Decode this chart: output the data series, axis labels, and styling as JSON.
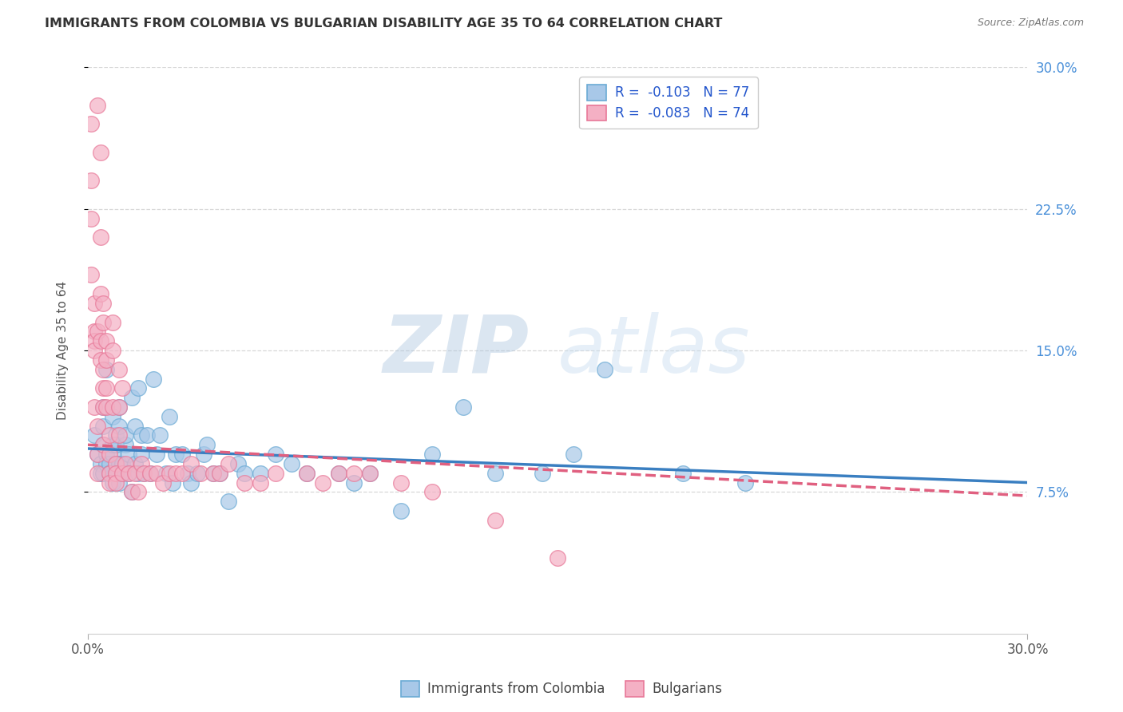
{
  "title": "IMMIGRANTS FROM COLOMBIA VS BULGARIAN DISABILITY AGE 35 TO 64 CORRELATION CHART",
  "source": "Source: ZipAtlas.com",
  "ylabel": "Disability Age 35 to 64",
  "xlim": [
    0.0,
    0.3
  ],
  "ylim": [
    0.0,
    0.3
  ],
  "ytick_labels": [
    "7.5%",
    "15.0%",
    "22.5%",
    "30.0%"
  ],
  "ytick_values": [
    0.075,
    0.15,
    0.225,
    0.3
  ],
  "colombia_color": "#a8c8e8",
  "bulgaria_color": "#f4b0c4",
  "colombia_edge": "#6aaad4",
  "bulgaria_edge": "#e87898",
  "trend_colombia_color": "#3a7fc1",
  "trend_bulgaria_color": "#e06080",
  "R_colombia": -0.103,
  "N_colombia": 77,
  "R_bulgaria": -0.083,
  "N_bulgaria": 74,
  "legend_label_colombia": "Immigrants from Colombia",
  "legend_label_bulgaria": "Bulgarians",
  "watermark_zip": "ZIP",
  "watermark_atlas": "atlas",
  "background_color": "#ffffff",
  "grid_color": "#d8d8d8",
  "colombia_scatter_x": [
    0.002,
    0.003,
    0.004,
    0.004,
    0.005,
    0.005,
    0.005,
    0.005,
    0.006,
    0.006,
    0.006,
    0.007,
    0.007,
    0.007,
    0.008,
    0.008,
    0.008,
    0.008,
    0.009,
    0.009,
    0.009,
    0.009,
    0.01,
    0.01,
    0.01,
    0.01,
    0.011,
    0.011,
    0.012,
    0.012,
    0.013,
    0.013,
    0.014,
    0.014,
    0.015,
    0.015,
    0.016,
    0.016,
    0.017,
    0.017,
    0.018,
    0.019,
    0.02,
    0.021,
    0.022,
    0.023,
    0.025,
    0.026,
    0.027,
    0.028,
    0.03,
    0.032,
    0.033,
    0.035,
    0.037,
    0.038,
    0.04,
    0.042,
    0.045,
    0.048,
    0.05,
    0.055,
    0.06,
    0.065,
    0.07,
    0.08,
    0.085,
    0.09,
    0.1,
    0.11,
    0.12,
    0.13,
    0.145,
    0.155,
    0.165,
    0.19,
    0.21
  ],
  "colombia_scatter_y": [
    0.105,
    0.095,
    0.09,
    0.085,
    0.085,
    0.1,
    0.11,
    0.12,
    0.14,
    0.095,
    0.09,
    0.09,
    0.085,
    0.085,
    0.08,
    0.095,
    0.1,
    0.115,
    0.105,
    0.1,
    0.09,
    0.085,
    0.08,
    0.09,
    0.12,
    0.11,
    0.09,
    0.085,
    0.1,
    0.105,
    0.095,
    0.085,
    0.075,
    0.125,
    0.11,
    0.09,
    0.085,
    0.13,
    0.105,
    0.095,
    0.085,
    0.105,
    0.085,
    0.135,
    0.095,
    0.105,
    0.085,
    0.115,
    0.08,
    0.095,
    0.095,
    0.085,
    0.08,
    0.085,
    0.095,
    0.1,
    0.085,
    0.085,
    0.07,
    0.09,
    0.085,
    0.085,
    0.095,
    0.09,
    0.085,
    0.085,
    0.08,
    0.085,
    0.065,
    0.095,
    0.12,
    0.085,
    0.085,
    0.095,
    0.14,
    0.085,
    0.08
  ],
  "bulgaria_scatter_x": [
    0.001,
    0.001,
    0.001,
    0.001,
    0.002,
    0.002,
    0.002,
    0.002,
    0.002,
    0.003,
    0.003,
    0.003,
    0.003,
    0.003,
    0.004,
    0.004,
    0.004,
    0.004,
    0.004,
    0.005,
    0.005,
    0.005,
    0.005,
    0.005,
    0.005,
    0.006,
    0.006,
    0.006,
    0.006,
    0.007,
    0.007,
    0.007,
    0.007,
    0.008,
    0.008,
    0.008,
    0.009,
    0.009,
    0.009,
    0.01,
    0.01,
    0.01,
    0.011,
    0.011,
    0.012,
    0.013,
    0.014,
    0.015,
    0.016,
    0.017,
    0.018,
    0.02,
    0.022,
    0.024,
    0.026,
    0.028,
    0.03,
    0.033,
    0.036,
    0.04,
    0.042,
    0.045,
    0.05,
    0.055,
    0.06,
    0.07,
    0.075,
    0.08,
    0.085,
    0.09,
    0.1,
    0.11,
    0.13,
    0.15
  ],
  "bulgaria_scatter_y": [
    0.27,
    0.24,
    0.22,
    0.19,
    0.175,
    0.16,
    0.155,
    0.15,
    0.12,
    0.11,
    0.095,
    0.085,
    0.16,
    0.28,
    0.255,
    0.21,
    0.18,
    0.155,
    0.145,
    0.14,
    0.13,
    0.12,
    0.1,
    0.175,
    0.165,
    0.155,
    0.145,
    0.13,
    0.12,
    0.105,
    0.095,
    0.085,
    0.08,
    0.165,
    0.15,
    0.12,
    0.09,
    0.085,
    0.08,
    0.14,
    0.12,
    0.105,
    0.085,
    0.13,
    0.09,
    0.085,
    0.075,
    0.085,
    0.075,
    0.09,
    0.085,
    0.085,
    0.085,
    0.08,
    0.085,
    0.085,
    0.085,
    0.09,
    0.085,
    0.085,
    0.085,
    0.09,
    0.08,
    0.08,
    0.085,
    0.085,
    0.08,
    0.085,
    0.085,
    0.085,
    0.08,
    0.075,
    0.06,
    0.04
  ]
}
